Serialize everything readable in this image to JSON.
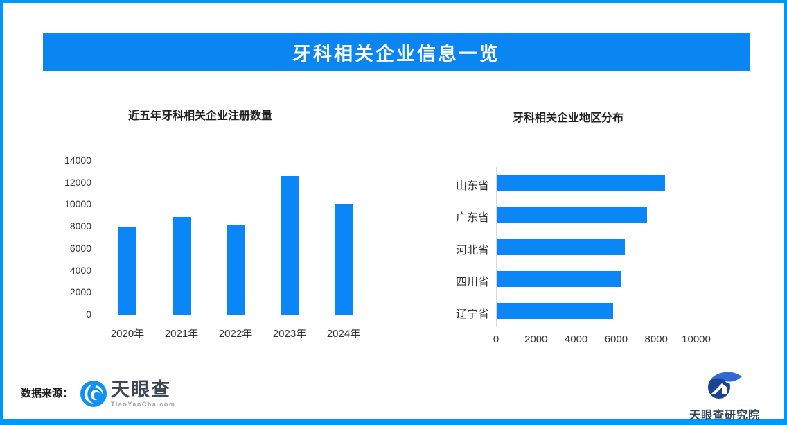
{
  "header": {
    "title": "牙科相关企业信息一览"
  },
  "colors": {
    "frame": "#0098f7",
    "banner": "#0a85f2",
    "bar": "#0b86f7",
    "axis": "#d9d9d9",
    "logo_blue": "#1191f2",
    "logo_dark": "#3d4854",
    "logo_gray": "#9aa3ab",
    "institute_navy": "#1c4291",
    "institute_swoosh": "#2f6ad4",
    "institute_text": "#33475c"
  },
  "chart_data": [
    {
      "type": "bar",
      "orientation": "vertical",
      "title": "近五年牙科相关企业注册数量",
      "categories": [
        "2020年",
        "2021年",
        "2022年",
        "2023年",
        "2024年"
      ],
      "values": [
        8000,
        8900,
        8200,
        12600,
        10100
      ],
      "xlabel": "",
      "ylabel": "",
      "ylim": [
        0,
        14000
      ],
      "yticks": [
        0,
        2000,
        4000,
        6000,
        8000,
        10000,
        12000,
        14000
      ],
      "grid": false,
      "legend": false
    },
    {
      "type": "bar",
      "orientation": "horizontal",
      "title": "牙科相关企业地区分布",
      "categories": [
        "山东省",
        "广东省",
        "河北省",
        "四川省",
        "辽宁省"
      ],
      "values": [
        8400,
        7500,
        6400,
        6200,
        5800
      ],
      "xlabel": "",
      "ylabel": "",
      "xlim": [
        0,
        11000
      ],
      "xticks": [
        0,
        2000,
        4000,
        6000,
        8000,
        10000
      ],
      "grid": false,
      "legend": false
    }
  ],
  "footer": {
    "source_label": "数据来源：",
    "logo": {
      "name": "天眼查",
      "subtext": "TianYanCha.com"
    },
    "institute": {
      "name": "天眼查研究院"
    }
  }
}
